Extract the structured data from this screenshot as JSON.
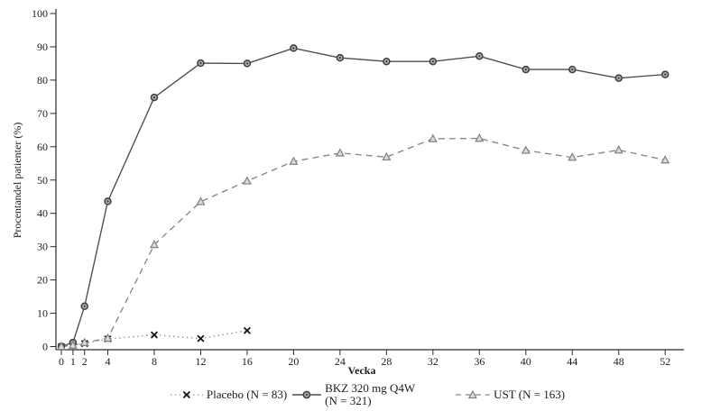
{
  "chart_data": {
    "type": "line",
    "title": "",
    "xlabel": "Vecka",
    "ylabel": "Procentandel patienter (%)",
    "xlim": [
      0,
      53
    ],
    "ylim": [
      0,
      100
    ],
    "x_ticks": [
      0,
      1,
      2,
      4,
      8,
      12,
      16,
      20,
      24,
      28,
      32,
      36,
      40,
      44,
      48,
      52
    ],
    "y_ticks": [
      0,
      10,
      20,
      30,
      40,
      50,
      60,
      70,
      80,
      90,
      100
    ],
    "grid": false,
    "legend_position": "bottom-center",
    "series": [
      {
        "name": "Placebo (N = 83)",
        "marker": "x",
        "line_style": "dotted",
        "line_color": "#909090",
        "marker_stroke": "#161616",
        "marker_fill": "none",
        "x": [
          0,
          1,
          2,
          4,
          8,
          12,
          16
        ],
        "y": [
          0,
          0.4,
          0.9,
          2.3,
          3.5,
          2.4,
          4.8
        ]
      },
      {
        "name": "BKZ 320 mg Q4W (N = 321)",
        "marker": "circle",
        "line_style": "solid",
        "line_color": "#4d4d4d",
        "marker_stroke": "#3f3f3f",
        "marker_fill": "#ababab",
        "x": [
          0,
          1,
          2,
          4,
          8,
          12,
          16,
          20,
          24,
          28,
          32,
          36,
          40,
          44,
          48,
          52
        ],
        "y": [
          0,
          1.2,
          12.1,
          43.6,
          74.8,
          85.1,
          85.0,
          89.6,
          86.7,
          85.6,
          85.6,
          87.2,
          83.2,
          83.2,
          80.6,
          81.7
        ]
      },
      {
        "name": "UST (N = 163)",
        "marker": "triangle",
        "line_style": "dashed",
        "line_color": "#878787",
        "marker_stroke": "#7f7f7f",
        "marker_fill": "#dcdcdc",
        "x": [
          0,
          1,
          2,
          4,
          8,
          12,
          16,
          20,
          24,
          28,
          32,
          36,
          40,
          44,
          48,
          52
        ],
        "y": [
          0,
          0.4,
          1.2,
          2.5,
          30.6,
          43.5,
          49.7,
          55.6,
          58.1,
          56.9,
          62.4,
          62.5,
          58.9,
          56.8,
          59.0,
          56.0
        ]
      }
    ]
  },
  "legend": {
    "placebo_label": "Placebo (N = 83)",
    "bkz_label_line1": "BKZ 320 mg Q4W",
    "bkz_label_line2": "(N = 321)",
    "ust_label": "UST (N = 163)"
  },
  "colors": {
    "axis": "#2b2b2b",
    "background": "#ffffff"
  }
}
